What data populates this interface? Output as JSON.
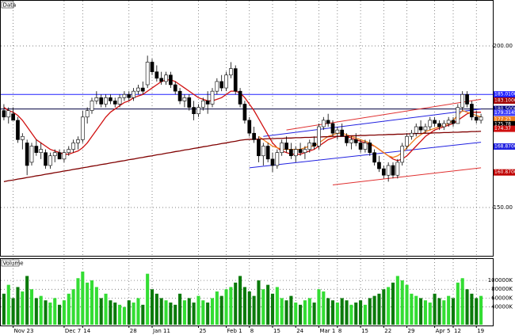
{
  "chart_data": [
    {
      "type": "candlestick",
      "title": "Data",
      "open": [
        180,
        178,
        179,
        177,
        171,
        170,
        164,
        169,
        167,
        167,
        163,
        166,
        167,
        165,
        167,
        168,
        170,
        171,
        178,
        180,
        183,
        184,
        182,
        184,
        183,
        182,
        184,
        185,
        184,
        186,
        187,
        188,
        195,
        192,
        190,
        189,
        191,
        188,
        186,
        183,
        184,
        181,
        179,
        181,
        183,
        182,
        186,
        189,
        187,
        191,
        193,
        186,
        182,
        177,
        173,
        171,
        166,
        169,
        165,
        163,
        167,
        170,
        168,
        166,
        168,
        167,
        168,
        170,
        169,
        175,
        177,
        176,
        173,
        174,
        172,
        170,
        171,
        170,
        168,
        170,
        167,
        164,
        162,
        160,
        163,
        160,
        164,
        169,
        172,
        173,
        175,
        174,
        175,
        177,
        176,
        175,
        176,
        177,
        176,
        181,
        185,
        182,
        178,
        177
      ],
      "high": [
        182,
        181,
        181,
        178,
        173,
        171,
        170,
        171,
        170,
        168,
        167,
        168,
        168,
        168,
        169,
        171,
        172,
        180,
        181,
        184,
        186,
        185,
        185,
        185,
        184,
        185,
        186,
        186,
        187,
        188,
        189,
        197,
        196,
        194,
        192,
        192,
        192,
        189,
        187,
        185,
        185,
        183,
        182,
        184,
        186,
        187,
        190,
        191,
        192,
        195,
        194,
        187,
        183,
        178,
        175,
        172,
        170,
        170,
        167,
        168,
        171,
        172,
        170,
        169,
        170,
        169,
        171,
        172,
        176,
        178,
        179,
        177,
        175,
        176,
        173,
        172,
        173,
        171,
        171,
        171,
        168,
        166,
        163,
        164,
        164,
        165,
        170,
        173,
        174,
        176,
        177,
        176,
        178,
        178,
        177,
        177,
        178,
        178,
        182,
        186,
        186,
        183,
        180,
        179
      ],
      "low": [
        177,
        176,
        177,
        170,
        168,
        160,
        163,
        166,
        165,
        162,
        162,
        164,
        165,
        164,
        166,
        167,
        168,
        170,
        176,
        179,
        182,
        181,
        181,
        182,
        181,
        181,
        183,
        183,
        183,
        185,
        185,
        187,
        191,
        189,
        188,
        188,
        187,
        185,
        182,
        181,
        180,
        177,
        178,
        180,
        179,
        181,
        185,
        186,
        186,
        190,
        185,
        181,
        176,
        172,
        170,
        164,
        163,
        164,
        161,
        162,
        166,
        167,
        165,
        164,
        166,
        165,
        167,
        168,
        168,
        174,
        175,
        172,
        171,
        172,
        169,
        168,
        169,
        167,
        167,
        166,
        163,
        161,
        159,
        158,
        159,
        159,
        163,
        168,
        171,
        172,
        173,
        173,
        174,
        175,
        174,
        174,
        175,
        175,
        176,
        180,
        181,
        177,
        176,
        176
      ],
      "close": [
        178,
        180,
        177,
        171,
        172,
        163,
        169,
        167,
        168,
        163,
        166,
        167,
        165,
        167,
        168,
        170,
        171,
        178,
        180,
        183,
        184,
        182,
        184,
        183,
        182,
        184,
        185,
        184,
        186,
        187,
        186,
        195,
        192,
        190,
        189,
        191,
        188,
        186,
        183,
        184,
        181,
        179,
        181,
        183,
        182,
        186,
        189,
        187,
        191,
        193,
        186,
        182,
        177,
        173,
        171,
        166,
        169,
        165,
        163,
        167,
        170,
        168,
        166,
        168,
        167,
        168,
        170,
        169,
        175,
        177,
        176,
        173,
        174,
        172,
        170,
        171,
        170,
        168,
        170,
        167,
        164,
        162,
        160,
        163,
        160,
        164,
        169,
        172,
        173,
        175,
        174,
        175,
        177,
        176,
        175,
        176,
        177,
        176,
        181,
        185,
        182,
        178,
        177,
        178
      ],
      "up_color": "#ffffff",
      "down_color": "#000000",
      "series": [
        {
          "color": "#d01010",
          "values": [
            181,
            180,
            179.5,
            178.5,
            177,
            175,
            173,
            171,
            170,
            169,
            168,
            167.5,
            167,
            166.5,
            166.5,
            167,
            167.5,
            168.5,
            170,
            172,
            174,
            176,
            178,
            179.5,
            180.5,
            181.5,
            182.5,
            183,
            184,
            184.5,
            185,
            186,
            187,
            188,
            189,
            189.5,
            189.5,
            189,
            188,
            187,
            186,
            185,
            184,
            183.5,
            183,
            183,
            183.5,
            184,
            185,
            186,
            186,
            185.5,
            184,
            182,
            180,
            177.5,
            175,
            172.5,
            170,
            168.5,
            167.5,
            167,
            166.5,
            166.5,
            166.5,
            167,
            167.5,
            168,
            169,
            170,
            171,
            171.5,
            172,
            172,
            172,
            171.5,
            171,
            170.5,
            170,
            169.5,
            169,
            168,
            167,
            166,
            165,
            164.5,
            165,
            166,
            167.5,
            169,
            170.5,
            172,
            173,
            174,
            174.5,
            175,
            175.5,
            176,
            177,
            178,
            179,
            179.5,
            179.5,
            179.5
          ]
        },
        {
          "color": "#f08020",
          "values": [
            null,
            null,
            null,
            null,
            null,
            null,
            null,
            null,
            null,
            null,
            null,
            null,
            null,
            null,
            null,
            null,
            null,
            null,
            null,
            null,
            null,
            null,
            null,
            null,
            null,
            null,
            null,
            null,
            null,
            null,
            null,
            null,
            null,
            null,
            null,
            null,
            null,
            null,
            null,
            null,
            null,
            null,
            null,
            null,
            null,
            null,
            null,
            null,
            null,
            null,
            null,
            null,
            null,
            null,
            null,
            172,
            171,
            170,
            169,
            168.5,
            168,
            168,
            168,
            168,
            168,
            168.5,
            169,
            169,
            170,
            171,
            172,
            172.5,
            173,
            173,
            172.5,
            172,
            171.5,
            171,
            170.5,
            170,
            169,
            168,
            167,
            166,
            165.5,
            166,
            167,
            168.5,
            170,
            171.5,
            172.5,
            173.5,
            174,
            174.5,
            175,
            175.5,
            176,
            177,
            178.5,
            180,
            179.5,
            179,
            178.5,
            178
          ]
        },
        {
          "color": "#800000",
          "values": [
            158,
            158.3,
            158.5,
            158.8,
            159,
            159.3,
            159.5,
            159.8,
            160,
            160.3,
            160.5,
            160.8,
            161,
            161.3,
            161.5,
            161.8,
            162,
            162.3,
            162.5,
            162.8,
            163,
            163.3,
            163.5,
            163.8,
            164,
            164.3,
            164.5,
            164.8,
            165,
            165.3,
            165.5,
            165.8,
            166,
            166.3,
            166.5,
            166.8,
            167,
            167.3,
            167.5,
            167.8,
            168,
            168.3,
            168.5,
            168.8,
            169,
            169.3,
            169.5,
            169.8,
            170,
            170.3,
            170.5,
            170.8,
            171,
            171.1,
            171.1,
            171.2,
            171.2,
            171.3,
            171.3,
            171.4,
            171.4,
            171.5,
            171.5,
            171.6,
            171.6,
            171.7,
            171.7,
            171.8,
            171.8,
            171.9,
            171.9,
            172,
            172,
            172.1,
            172.1,
            172.2,
            172.2,
            172.3,
            172.3,
            172.4,
            172.4,
            172.5,
            172.5,
            172.6,
            172.6,
            172.7,
            172.7,
            172.8,
            172.8,
            172.9,
            172.9,
            173,
            173,
            173.1,
            173.1,
            173.2,
            173.2,
            173.3,
            173.3,
            173.4,
            173.4,
            173.5,
            173.5,
            173.6
          ]
        }
      ],
      "hlines": [
        {
          "value": 185.01,
          "color": "#2020ff"
        },
        {
          "value": 180.5,
          "color": "#000040"
        }
      ],
      "trend_lines": [
        {
          "x": [
            53,
            103
          ],
          "y": [
            162.3,
            170.2
          ],
          "color": "#2020e0"
        },
        {
          "x": [
            56,
            103
          ],
          "y": [
            172,
            180.5
          ],
          "color": "#2020e0"
        },
        {
          "x": [
            61,
            103
          ],
          "y": [
            174,
            183.5
          ],
          "color": "#e03030"
        },
        {
          "x": [
            71,
            103
          ],
          "y": [
            157,
            162.3
          ],
          "color": "#e03030"
        }
      ],
      "price_labels": [
        {
          "value": 185.01,
          "label": "185.0100",
          "color": "#2020ff"
        },
        {
          "value": 183.1,
          "label": "183.1000",
          "color": "#a00000"
        },
        {
          "value": 180.5,
          "label": "180.5000",
          "color": "#000080"
        },
        {
          "value": 179.31,
          "label": "179.3145",
          "color": "#4040ff"
        },
        {
          "value": 177.23,
          "label": "177.23",
          "color": "#f08020"
        },
        {
          "value": 175.78,
          "label": "175.78",
          "color": "#000000"
        },
        {
          "value": 174.37,
          "label": "174.37",
          "color": "#d01010"
        },
        {
          "value": 168.87,
          "label": "168.8700",
          "color": "#2020e0"
        },
        {
          "value": 160.87,
          "label": "160.8700",
          "color": "#c00000"
        }
      ],
      "ylim": [
        135.3,
        213
      ],
      "yticks": [
        {
          "value": 200,
          "label": "200.00"
        },
        {
          "value": 150,
          "label": "150.00"
        }
      ],
      "grid": true
    },
    {
      "type": "bar",
      "title": "Volume",
      "categories": [
        null,
        null,
        "Nov 23",
        null,
        null,
        null,
        null,
        null,
        null,
        null,
        null,
        null,
        null,
        "Dec 7",
        null,
        null,
        null,
        "14",
        null,
        null,
        null,
        null,
        null,
        null,
        null,
        null,
        null,
        "28",
        null,
        null,
        null,
        null,
        "Jan 11",
        null,
        null,
        null,
        null,
        null,
        null,
        null,
        null,
        null,
        "25",
        null,
        null,
        null,
        null,
        null,
        "Feb 1",
        null,
        null,
        null,
        null,
        "8",
        null,
        null,
        null,
        null,
        "15",
        null,
        null,
        null,
        null,
        "24",
        null,
        null,
        null,
        null,
        "Mar 1",
        null,
        null,
        null,
        "8",
        null,
        null,
        null,
        null,
        "15",
        null,
        null,
        null,
        null,
        "22",
        null,
        null,
        null,
        null,
        "29",
        null,
        null,
        null,
        null,
        null,
        "Apr 5",
        null,
        null,
        null,
        "12",
        null,
        null,
        null,
        null,
        "19",
        null
      ],
      "values": [
        70000,
        90000,
        60000,
        85000,
        75000,
        110000,
        80000,
        60000,
        65000,
        55000,
        50000,
        60000,
        45000,
        55000,
        70000,
        80000,
        105000,
        120000,
        95000,
        100000,
        85000,
        60000,
        70000,
        55000,
        50000,
        45000,
        40000,
        55000,
        50000,
        60000,
        45000,
        115000,
        80000,
        70000,
        60000,
        55000,
        50000,
        45000,
        70000,
        55000,
        60000,
        50000,
        65000,
        55000,
        50000,
        60000,
        75000,
        65000,
        80000,
        85000,
        95000,
        110000,
        85000,
        75000,
        65000,
        100000,
        80000,
        90000,
        70000,
        85000,
        60000,
        55000,
        65000,
        50000,
        45000,
        55000,
        60000,
        50000,
        80000,
        75000,
        60000,
        55000,
        50000,
        60000,
        55000,
        45000,
        50000,
        55000,
        45000,
        60000,
        65000,
        70000,
        80000,
        85000,
        95000,
        110000,
        100000,
        90000,
        70000,
        65000,
        60000,
        55000,
        50000,
        70000,
        60000,
        55000,
        65000,
        60000,
        95000,
        105000,
        80000,
        70000,
        60000,
        65000
      ],
      "up_color": "#33dd33",
      "down_color": "#0a7a0a",
      "ylim": [
        0,
        143000
      ],
      "yticks": [
        {
          "value": 100000,
          "label": "100000K"
        },
        {
          "value": 80000,
          "label": "80000K"
        },
        {
          "value": 60000,
          "label": "60000K"
        },
        {
          "value": 40000,
          "label": "40000K"
        }
      ],
      "grid": true
    }
  ]
}
